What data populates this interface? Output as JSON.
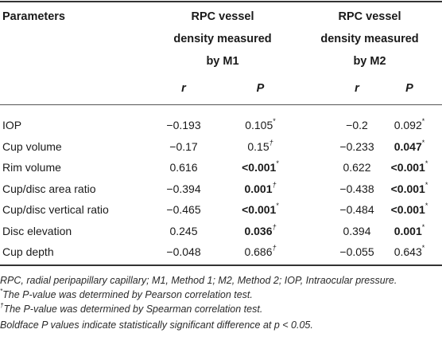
{
  "header": {
    "parameters": "Parameters",
    "group1": [
      "RPC vessel",
      "density measured",
      "by M1"
    ],
    "group2": [
      "RPC vessel",
      "density measured",
      "by M2"
    ],
    "sub_r": "r",
    "sub_p": "P"
  },
  "rows": [
    {
      "name": "IOP",
      "r1": "−0.193",
      "p1": "0.105",
      "p1_mark": "*",
      "p1_bold": false,
      "r2": "−0.2",
      "p2": "0.092",
      "p2_mark": "*",
      "p2_bold": false
    },
    {
      "name": "Cup volume",
      "r1": "−0.17",
      "p1": "0.15",
      "p1_mark": "†",
      "p1_bold": false,
      "r2": "−0.233",
      "p2": "0.047",
      "p2_mark": "*",
      "p2_bold": true
    },
    {
      "name": "Rim volume",
      "r1": "0.616",
      "p1": "<0.001",
      "p1_mark": "*",
      "p1_bold": true,
      "r2": "0.622",
      "p2": "<0.001",
      "p2_mark": "*",
      "p2_bold": true
    },
    {
      "name": "Cup/disc area ratio",
      "r1": "−0.394",
      "p1": "0.001",
      "p1_mark": "†",
      "p1_bold": true,
      "r2": "−0.438",
      "p2": "<0.001",
      "p2_mark": "*",
      "p2_bold": true
    },
    {
      "name": "Cup/disc vertical ratio",
      "r1": "−0.465",
      "p1": "<0.001",
      "p1_mark": "*",
      "p1_bold": true,
      "r2": "−0.484",
      "p2": "<0.001",
      "p2_mark": "*",
      "p2_bold": true
    },
    {
      "name": "Disc elevation",
      "r1": "0.245",
      "p1": "0.036",
      "p1_mark": "†",
      "p1_bold": true,
      "r2": "0.394",
      "p2": "0.001",
      "p2_mark": "*",
      "p2_bold": true
    },
    {
      "name": "Cup depth",
      "r1": "−0.048",
      "p1": "0.686",
      "p1_mark": "†",
      "p1_bold": false,
      "r2": "−0.055",
      "p2": "0.643",
      "p2_mark": "*",
      "p2_bold": false
    }
  ],
  "footnotes": {
    "abbrev": "RPC, radial peripapillary capillary; M1, Method 1; M2, Method 2; IOP, Intraocular pressure.",
    "star_mark": "*",
    "star_text": "The P-value was determined by Pearson correlation test.",
    "dagger_mark": "†",
    "dagger_text": "The P-value was determined by Spearman correlation test.",
    "bold_note": "Boldface P values indicate statistically significant difference at p < 0.05."
  }
}
